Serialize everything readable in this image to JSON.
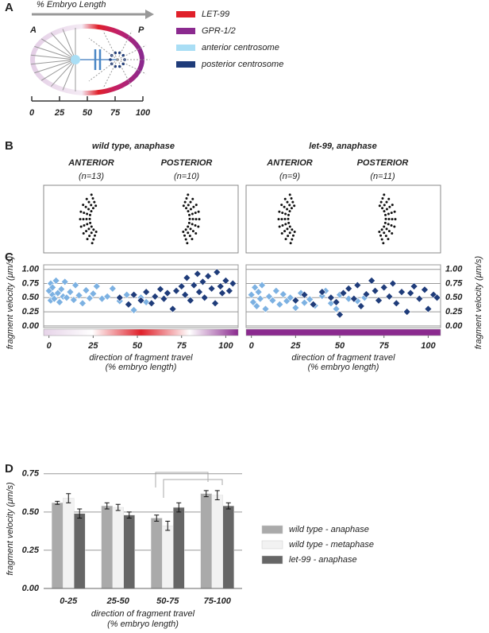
{
  "panels": [
    "A",
    "B",
    "C",
    "D"
  ],
  "diagram": {
    "title": "% Embryo Length",
    "anterior": "A",
    "posterior": "P",
    "xlim": [
      0,
      100
    ],
    "ticks": [
      0,
      25,
      50,
      75,
      100
    ],
    "legend": [
      {
        "label": "LET-99",
        "color": "#e0202a"
      },
      {
        "label": "GPR-1/2",
        "color": "#8b2a8f"
      },
      {
        "label": "anterior centrosome",
        "color": "#a9def5"
      },
      {
        "label": "posterior centrosome",
        "color": "#1f3c7a"
      }
    ]
  },
  "panel_b": {
    "groups": [
      {
        "title": "wild type, anaphase",
        "columns": [
          {
            "label": "ANTERIOR",
            "n": "(n=13)"
          },
          {
            "label": "POSTERIOR",
            "n": "(n=10)"
          }
        ]
      },
      {
        "title": "let-99, anaphase",
        "columns": [
          {
            "label": "ANTERIOR",
            "n": "(n=9)"
          },
          {
            "label": "POSTERIOR",
            "n": "(n=11)"
          }
        ]
      }
    ]
  },
  "chart_data": [
    {
      "type": "scatter",
      "y_label": "fragment velocity (μm/s)",
      "x_label": [
        "direction of fragment travel",
        "(% embryo length)"
      ],
      "xlim": [
        -3,
        107
      ],
      "xticks": [
        0,
        25,
        50,
        75,
        100
      ],
      "ylim": [
        -0.03,
        1.08
      ],
      "yticks": [
        {
          "value": 0,
          "label": "0.00"
        },
        0.25,
        {
          "value": 0.5,
          "label": "0.50"
        },
        0.75,
        {
          "value": 1,
          "label": "1.00"
        }
      ],
      "grid": true,
      "color_bar": [
        "#e6d3e8",
        "#ffffff",
        "#e0202a",
        "#ffffff",
        "#8b2a8f"
      ],
      "series": [
        {
          "color": "#7cb1e2",
          "x": [
            0,
            1,
            1,
            2,
            2,
            3,
            4,
            5,
            6,
            7,
            8,
            9,
            10,
            12,
            14,
            15,
            17,
            19,
            21,
            23,
            25,
            27,
            30,
            33,
            36,
            40,
            44,
            48,
            52,
            55
          ],
          "values": [
            0.62,
            0.45,
            0.75,
            0.55,
            0.68,
            0.48,
            0.8,
            0.58,
            0.42,
            0.65,
            0.52,
            0.78,
            0.5,
            0.6,
            0.46,
            0.72,
            0.54,
            0.4,
            0.63,
            0.49,
            0.57,
            0.7,
            0.48,
            0.52,
            0.66,
            0.44,
            0.55,
            0.28,
            0.5,
            0.42
          ]
        },
        {
          "color": "#1f3c7a",
          "x": [
            40,
            45,
            48,
            52,
            55,
            58,
            60,
            63,
            65,
            67,
            70,
            72,
            75,
            77,
            78,
            80,
            82,
            84,
            85,
            87,
            88,
            90,
            92,
            94,
            95,
            97,
            98,
            100,
            102,
            104
          ],
          "values": [
            0.5,
            0.38,
            0.55,
            0.45,
            0.6,
            0.4,
            0.52,
            0.65,
            0.48,
            0.58,
            0.3,
            0.62,
            0.7,
            0.55,
            0.85,
            0.45,
            0.72,
            0.92,
            0.6,
            0.78,
            0.5,
            0.88,
            0.66,
            0.4,
            0.95,
            0.7,
            0.58,
            0.8,
            0.62,
            0.75
          ]
        }
      ]
    },
    {
      "type": "scatter",
      "y_label": "fragment velocity (μm/s)",
      "x_label": [
        "direction of fragment travel",
        "(% embryo length)"
      ],
      "xlim": [
        -3,
        107
      ],
      "xticks": [
        0,
        25,
        50,
        75,
        100
      ],
      "ylim": [
        -0.03,
        1.08
      ],
      "yticks": [
        {
          "value": 0,
          "label": "0.00"
        },
        0.25,
        {
          "value": 0.5,
          "label": "0.50"
        },
        0.75,
        {
          "value": 1,
          "label": "1.00"
        }
      ],
      "grid": true,
      "color_bar": [
        "#8b2a8f"
      ],
      "y_axis_side": "right",
      "series": [
        {
          "color": "#7cb1e2",
          "x": [
            0,
            1,
            2,
            3,
            4,
            5,
            6,
            8,
            10,
            12,
            14,
            16,
            18,
            20,
            22,
            25,
            28,
            30,
            33,
            36,
            40,
            42,
            45,
            48,
            50,
            55,
            60,
            64
          ],
          "values": [
            0.55,
            0.42,
            0.68,
            0.35,
            0.6,
            0.48,
            0.72,
            0.3,
            0.52,
            0.45,
            0.62,
            0.38,
            0.56,
            0.44,
            0.5,
            0.32,
            0.58,
            0.41,
            0.47,
            0.36,
            0.53,
            0.62,
            0.4,
            0.3,
            0.55,
            0.48,
            0.44,
            0.5
          ]
        },
        {
          "color": "#1f3c7a",
          "x": [
            25,
            30,
            35,
            40,
            45,
            48,
            50,
            52,
            55,
            58,
            60,
            62,
            65,
            68,
            70,
            72,
            75,
            78,
            80,
            82,
            85,
            88,
            90,
            92,
            95,
            98,
            100,
            103,
            105
          ],
          "values": [
            0.45,
            0.55,
            0.38,
            0.6,
            0.5,
            0.42,
            0.2,
            0.58,
            0.66,
            0.48,
            0.72,
            0.35,
            0.56,
            0.8,
            0.62,
            0.45,
            0.68,
            0.52,
            0.75,
            0.4,
            0.6,
            0.25,
            0.58,
            0.7,
            0.48,
            0.64,
            0.3,
            0.55,
            0.5
          ]
        }
      ]
    },
    {
      "type": "bar",
      "y_label": "fragment velocity (μm/s)",
      "x_label": [
        "direction of fragment travel",
        "(% embryo length)"
      ],
      "categories": [
        "0-25",
        "25-50",
        "50-75",
        "75-100"
      ],
      "ylim": [
        0,
        0.78
      ],
      "yticks": [
        {
          "value": 0,
          "label": "0.00"
        },
        0.25,
        {
          "value": 0.5,
          "label": "0.50"
        },
        0.75
      ],
      "grid": true,
      "series": [
        {
          "name": "wild type - anaphase",
          "color": "#aaaaaa",
          "values": [
            0.56,
            0.54,
            0.46,
            0.62
          ],
          "errors": [
            0.01,
            0.02,
            0.02,
            0.02
          ]
        },
        {
          "name": "wild type - metaphase",
          "color": "#f2f2f2",
          "values": [
            0.59,
            0.53,
            0.41,
            0.61
          ],
          "errors": [
            0.03,
            0.02,
            0.03,
            0.03
          ]
        },
        {
          "name": "let-99 - anaphase",
          "color": "#666666",
          "values": [
            0.49,
            0.48,
            0.53,
            0.54
          ],
          "errors": [
            0.03,
            0.02,
            0.03,
            0.02
          ]
        }
      ]
    }
  ]
}
